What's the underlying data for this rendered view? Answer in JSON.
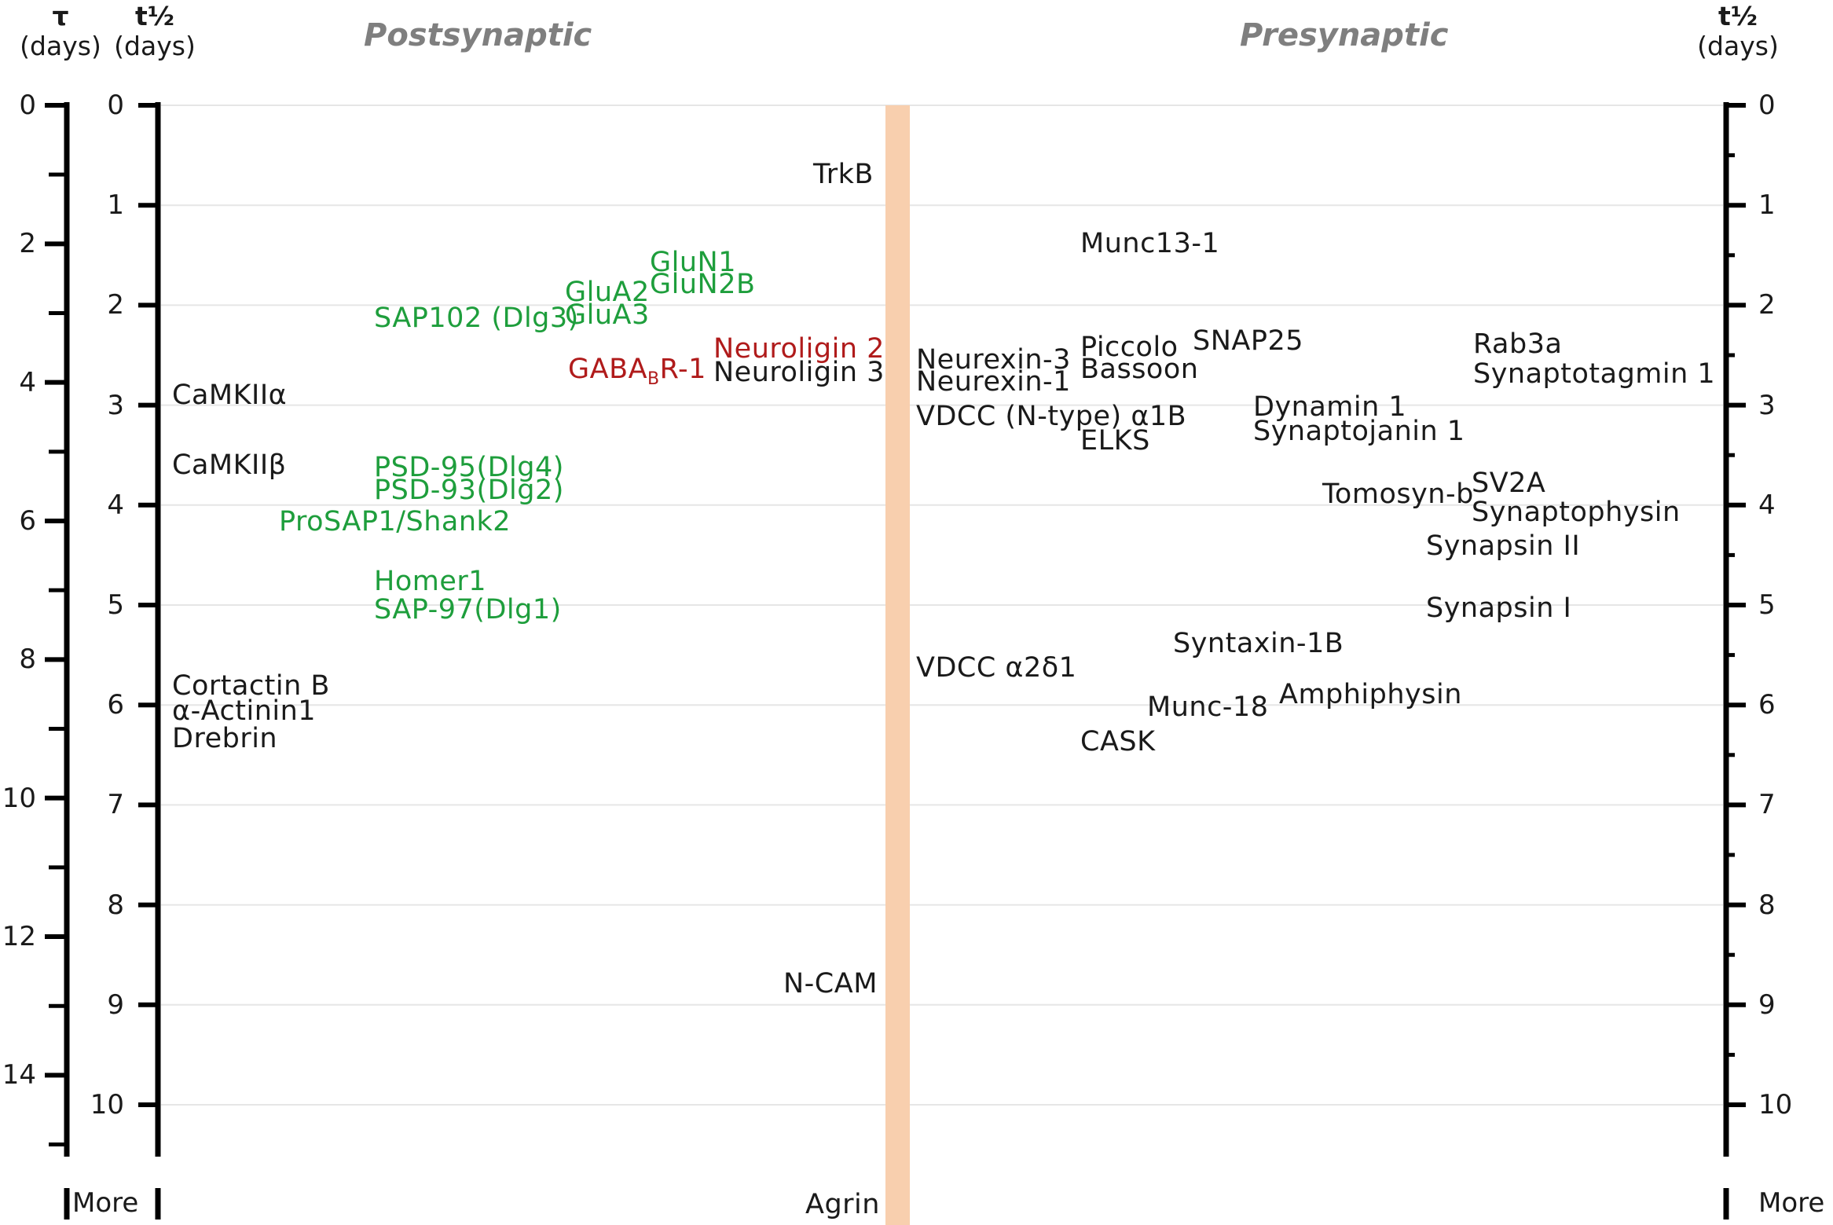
{
  "headers": {
    "tau_symbol": "τ",
    "tau_unit": "(days)",
    "thalf_symbol": "t½",
    "thalf_unit_left": "(days)",
    "thalf_symbol_right": "t½",
    "thalf_unit_right": "(days)",
    "postsynaptic": "Postsynaptic",
    "presynaptic": "Presynaptic",
    "more_left": "More",
    "more_right": "More"
  },
  "axes": {
    "thalf_ticks": [
      "0",
      "1",
      "2",
      "3",
      "4",
      "5",
      "6",
      "7",
      "8",
      "9",
      "10"
    ],
    "tau_ticks": [
      "0",
      "2",
      "4",
      "6",
      "8",
      "10",
      "12",
      "14"
    ]
  },
  "colors": {
    "green": "#1e9e3c",
    "red": "#b01b1b",
    "black": "#1a1a1a",
    "membrane": "#f8cfae",
    "grid": "#e6e6e6",
    "side_label": "#7f7f7f"
  },
  "proteins": {
    "trkb": "TrkB",
    "n_cam": "N-CAM",
    "agrin": "Agrin",
    "glun1": "GluN1",
    "glun2b": "GluN2B",
    "glua2": "GluA2",
    "glua3": "GluA3",
    "sap102": "SAP102 (Dlg3)",
    "neuroligin2": "Neuroligin 2",
    "neuroligin3": "Neuroligin 3",
    "gabab_pre": "GABA",
    "gabab_sub": "B",
    "gabab_post": "R-1",
    "camkiia": "CaMKIIα",
    "camkiib": "CaMKIIβ",
    "psd95": "PSD-95(Dlg4)",
    "psd93": "PSD-93(Dlg2)",
    "prosap1": "ProSAP1/Shank2",
    "homer1": "Homer1",
    "sap97": "SAP-97(Dlg1)",
    "cortactin": "Cortactin B",
    "actinin": "α-Actinin1",
    "drebrin": "Drebrin",
    "munc13": "Munc13-1",
    "neurexin3": "Neurexin-3",
    "neurexin1": "Neurexin-1",
    "piccolo": "Piccolo",
    "bassoon": "Bassoon",
    "snap25": "SNAP25",
    "rab3a": "Rab3a",
    "synaptotagmin": "Synaptotagmin 1",
    "vdcc_n": "VDCC (N-type) α1B",
    "elks": "ELKS",
    "dynamin": "Dynamin 1",
    "synaptojanin": "Synaptojanin 1",
    "tomosyn": "Tomosyn-b",
    "sv2a": "SV2A",
    "synaptophysin": "Synaptophysin",
    "synapsin2": "Synapsin II",
    "synapsin1": "Synapsin I",
    "syntaxin": "Syntaxin-1B",
    "vdcc_a2d1": "VDCC α2δ1",
    "munc18": "Munc-18",
    "amphiphysin": "Amphiphysin",
    "cask": "CASK"
  }
}
